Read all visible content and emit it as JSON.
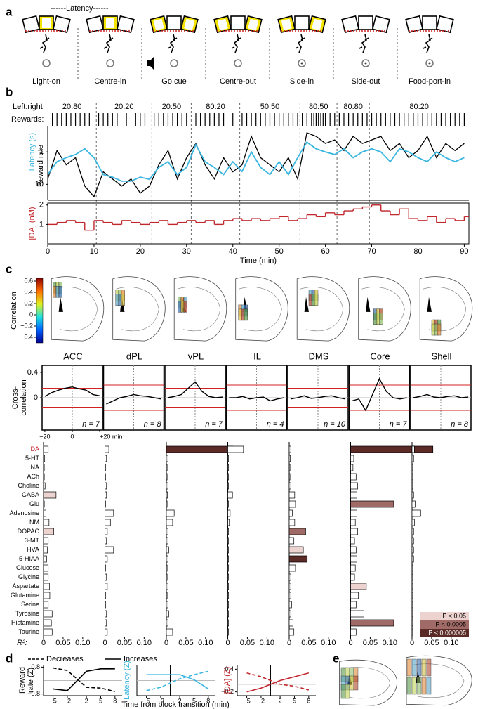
{
  "panel_labels": [
    "a",
    "b",
    "c",
    "d",
    "e"
  ],
  "panel_a": {
    "title": "------Latency------",
    "events": [
      "Light-on",
      "Centre-in",
      "Go cue",
      "Centre-out",
      "Side-in",
      "Side-out",
      "Food-port-in"
    ]
  },
  "panel_b": {
    "ratio_label": "Left:right",
    "block_ratios": [
      "20:80",
      "20:20",
      "20:50",
      "80:20",
      "50:50",
      "80:50",
      "80:80",
      "80:20"
    ],
    "rewards_label": "Rewards:",
    "reward_times": [
      1,
      2,
      3,
      4,
      5,
      6,
      7,
      8,
      9,
      11,
      12,
      13,
      14,
      15,
      17,
      19,
      20,
      21,
      23,
      24,
      25,
      26,
      27,
      28,
      29,
      30,
      32,
      33,
      34,
      35,
      36,
      37,
      38,
      40,
      42,
      43,
      44,
      45,
      46,
      47,
      48,
      49,
      50,
      51,
      52,
      53,
      54,
      55,
      56,
      57,
      57.5,
      58,
      58.5,
      59,
      59.5,
      60,
      61,
      62,
      63,
      64,
      65,
      66,
      67,
      68,
      69,
      70,
      71,
      72,
      73,
      74,
      75,
      76,
      77,
      78,
      79,
      80,
      81,
      82,
      83,
      84,
      85,
      86,
      87,
      88,
      89,
      90
    ],
    "transitions": [
      10.5,
      22.5,
      31,
      41.5,
      54.5,
      62.5,
      69.5
    ],
    "x": [
      0,
      2,
      4,
      6,
      8,
      10,
      12,
      14,
      16,
      18,
      20,
      22,
      24,
      26,
      28,
      30,
      32,
      34,
      36,
      38,
      40,
      42,
      44,
      46,
      48,
      50,
      52,
      54,
      56,
      58,
      60,
      62,
      64,
      66,
      68,
      70,
      72,
      74,
      76,
      78,
      80,
      82,
      84,
      86,
      88,
      90
    ],
    "xlim": [
      0,
      91
    ],
    "xticks": [
      0,
      10,
      20,
      30,
      40,
      50,
      60,
      70,
      80,
      90
    ],
    "xlabel": "Time (min)",
    "reward_rate": {
      "name": "Reward rate",
      "color": "#000000",
      "ylim": [
        0,
        1
      ],
      "values": [
        0.3,
        0.7,
        0.5,
        0.6,
        0.2,
        0.05,
        0.4,
        0.3,
        0.2,
        0.3,
        0.1,
        0.2,
        0.5,
        0.7,
        0.3,
        0.6,
        0.8,
        0.5,
        0.3,
        0.6,
        0.4,
        0.5,
        0.9,
        0.6,
        0.5,
        0.4,
        0.6,
        0.3,
        0.95,
        0.9,
        0.8,
        0.85,
        0.7,
        0.9,
        0.8,
        0.85,
        0.9,
        0.7,
        0.8,
        0.6,
        0.7,
        0.9,
        0.6,
        0.8,
        0.7,
        0.8
      ]
    },
    "latency": {
      "name": "Latency (s)",
      "color": "#3bb6e0",
      "log": true,
      "inverted": true,
      "ylim": [
        0.2,
        31
      ],
      "yticks": [
        1,
        10
      ],
      "values": [
        5,
        2,
        1.5,
        1.2,
        0.8,
        1.5,
        5,
        6,
        8,
        8,
        6,
        7,
        3,
        2,
        5,
        3,
        0.6,
        2,
        3,
        5,
        2,
        4,
        1,
        3,
        5,
        2,
        5,
        1.5,
        0.5,
        0.8,
        1,
        1.2,
        0.8,
        1.5,
        1,
        0.8,
        1,
        2,
        0.8,
        1,
        1.5,
        2,
        1,
        1.5,
        2,
        1.5
      ]
    },
    "da": {
      "name": "[DA] (nM)",
      "color": "#c1272d",
      "ylim": [
        0,
        2.1
      ],
      "yticks": [
        1,
        2
      ],
      "values": [
        1.0,
        1.1,
        1.2,
        1.1,
        0.7,
        1.2,
        1.1,
        1.0,
        1.2,
        1.1,
        1.0,
        1.1,
        1.2,
        1.0,
        1.1,
        1.2,
        1.1,
        1.2,
        1.0,
        1.2,
        1.3,
        1.2,
        1.3,
        1.2,
        1.3,
        1.4,
        1.2,
        1.3,
        1.5,
        1.4,
        1.6,
        1.5,
        1.7,
        1.8,
        1.9,
        2.0,
        1.7,
        1.5,
        1.8,
        1.3,
        1.2,
        1.4,
        1.1,
        1.3,
        1.2,
        1.4
      ]
    }
  },
  "panel_c": {
    "colorbar": {
      "label": "Correlation",
      "lim": [
        -0.5,
        0.65
      ],
      "ticks": [
        0.6,
        0.4,
        0.2,
        0,
        {
          "value": -0.2,
          "label": "−0.2"
        },
        {
          "value": -0.4,
          "label": "−0.4"
        }
      ]
    },
    "xcorr_ylabel": [
      "Cross-",
      "correlation"
    ],
    "xcorr_x": [
      -20,
      -15,
      -10,
      -5,
      0,
      5,
      10,
      15,
      20
    ],
    "xcorr_xlim": [
      -22,
      22
    ],
    "xcorr_ylim": [
      -0.51,
      0.51
    ],
    "xcorr_yticks": [
      0.4,
      0
    ],
    "xcorr_xticks": [
      {
        "value": -20,
        "label": "−20"
      },
      0,
      {
        "value": 20,
        "label": "+20 min"
      }
    ],
    "analytes": [
      "DA",
      "5-HT",
      "NA",
      "ACh",
      "Choline",
      "GABA",
      "Glu",
      "Adenosine",
      "NM",
      "DOPAC",
      "3-MT",
      "HVA",
      "5-HIAA",
      "Glucose",
      "Glycine",
      "Aspartate",
      "Glutamine",
      "Serine",
      "Tyrosine",
      "Histamine",
      "Taurine"
    ],
    "highlight_analyte": "DA",
    "highlight_color": "#c1272d",
    "r2_label": "R²:",
    "r2_xlim": [
      0,
      0.12
    ],
    "r2_xticks": [
      0,
      0.05,
      {
        "value": 0.1,
        "label": "0.10"
      }
    ],
    "significance": [
      {
        "label": "P < 0.05",
        "color": "#ecd3d0"
      },
      {
        "label": "P < 0.0005",
        "color": "#a06b66"
      },
      {
        "label": "P < 0.000005",
        "color": "#5b2b28"
      }
    ],
    "regions": [
      {
        "name": "ACC",
        "n_label": "n = 7",
        "threshold": 0.15,
        "xcorr": [
          0.02,
          0.08,
          0.12,
          0.15,
          0.17,
          0.14,
          0.12,
          0.05,
          0.03
        ],
        "r2": [
          0.012,
          0.003,
          0.002,
          0.002,
          0.004,
          0.032,
          0.002,
          0.006,
          0.014,
          0.026,
          0.012,
          0.01,
          0.008,
          0.012,
          0.012,
          0.015,
          0.016,
          0.012,
          0.022,
          0.02,
          0.022
        ],
        "sig": [
          0,
          0,
          0,
          0,
          0,
          1,
          0,
          0,
          0,
          1,
          0,
          0,
          0,
          0,
          0,
          0,
          0,
          0,
          0,
          0,
          0
        ]
      },
      {
        "name": "dPL",
        "n_label": "n = 8",
        "threshold": 0.2,
        "xcorr": [
          -0.1,
          -0.05,
          0,
          0.02,
          0.05,
          0.03,
          0.02,
          0,
          -0.02
        ],
        "r2": [
          0.01,
          0.004,
          0.002,
          0.002,
          0.004,
          0.004,
          0.002,
          0.022,
          0.014,
          0.006,
          0.004,
          0.022,
          0.006,
          0.002,
          0.004,
          0.006,
          0.002,
          0.002,
          0.004,
          0.004,
          0.006
        ],
        "sig": [
          0,
          0,
          0,
          0,
          0,
          0,
          0,
          0,
          0,
          0,
          0,
          0,
          0,
          0,
          0,
          0,
          0,
          0,
          0,
          0,
          0
        ]
      },
      {
        "name": "vPL",
        "n_label": "n = 7",
        "threshold": 0.15,
        "xcorr": [
          0,
          0.02,
          0.05,
          0.15,
          0.25,
          0.1,
          0.02,
          0,
          0.01
        ],
        "r2": [
          0.17,
          0.004,
          0.002,
          0.002,
          0.004,
          0.003,
          0.002,
          0.02,
          0.016,
          0.004,
          0.004,
          0.006,
          0.004,
          0.002,
          0.002,
          0.004,
          0.002,
          0.004,
          0.006,
          0.004,
          0.016
        ],
        "sig": [
          3,
          0,
          0,
          0,
          0,
          0,
          0,
          0,
          0,
          0,
          0,
          0,
          0,
          0,
          0,
          0,
          0,
          0,
          0,
          0,
          0
        ]
      },
      {
        "name": "IL",
        "n_label": "n = 4",
        "threshold": 0.2,
        "xcorr": [
          0,
          0,
          0.02,
          -0.02,
          0,
          0.01,
          -0.05,
          -0.02,
          0
        ],
        "r2": [
          0.04,
          0.002,
          0.002,
          0.002,
          0.002,
          0.012,
          0.002,
          0.006,
          0.004,
          0.002,
          0.002,
          0.002,
          0.002,
          0.002,
          0.002,
          0.002,
          0.002,
          0.002,
          0.002,
          0.002,
          0.002
        ],
        "sig": [
          0,
          0,
          0,
          0,
          0,
          0,
          0,
          0,
          0,
          0,
          0,
          0,
          0,
          0,
          0,
          0,
          0,
          0,
          0,
          0,
          0
        ]
      },
      {
        "name": "DMS",
        "n_label": "n = 10",
        "threshold": 0.15,
        "xcorr": [
          -0.02,
          0,
          0.03,
          -0.01,
          0,
          0.02,
          0.03,
          0,
          -0.02
        ],
        "r2": [
          0.004,
          0.003,
          0.002,
          0.002,
          0.004,
          0.014,
          0.016,
          0.008,
          0.014,
          0.042,
          0.012,
          0.036,
          0.046,
          0.016,
          0.004,
          0.004,
          0.004,
          0.006,
          0.004,
          0.01,
          0.012
        ],
        "sig": [
          0,
          0,
          0,
          0,
          0,
          0,
          0,
          0,
          0,
          2,
          0,
          1,
          3,
          0,
          0,
          0,
          0,
          0,
          0,
          0,
          0
        ]
      },
      {
        "name": "Core",
        "n_label": "n = 7",
        "threshold": 0.2,
        "xcorr": [
          -0.05,
          -0.02,
          -0.2,
          0.05,
          0.3,
          0.1,
          0,
          -0.02,
          0
        ],
        "r2": [
          0.21,
          0.008,
          0.006,
          0.014,
          0.018,
          0.016,
          0.11,
          0.016,
          0.012,
          0.018,
          0.01,
          0.014,
          0.016,
          0.012,
          0.01,
          0.04,
          0.02,
          0.014,
          0.034,
          0.11,
          0.014
        ],
        "sig": [
          3,
          0,
          0,
          0,
          0,
          0,
          2,
          0,
          0,
          0,
          0,
          0,
          0,
          0,
          0,
          1,
          0,
          0,
          0,
          2,
          0
        ]
      },
      {
        "name": "Shell",
        "n_label": "n = 8",
        "threshold": 0.2,
        "xcorr": [
          0,
          0.02,
          0.05,
          0.01,
          0,
          0.02,
          0.03,
          0,
          0.01
        ],
        "r2": [
          0.006,
          0.004,
          0.002,
          0.002,
          0.002,
          0.004,
          0.008,
          0.022,
          0.006,
          0.004,
          0.004,
          0.004,
          0.004,
          0.002,
          0.002,
          0.002,
          0.002,
          0.002,
          0.002,
          0.002,
          0.002
        ],
        "sig": [
          0,
          0,
          0,
          0,
          0,
          0,
          0,
          0,
          0,
          0,
          0,
          0,
          0,
          0,
          0,
          0,
          0,
          0,
          0,
          0,
          0
        ]
      }
    ]
  },
  "panel_d": {
    "x": [
      -5,
      -2,
      2,
      5,
      8
    ],
    "xlim": [
      -7,
      9.5
    ],
    "xticks": [
      {
        "value": -5,
        "label": "−5"
      },
      {
        "value": -2,
        "label": "−2"
      },
      2,
      5,
      8
    ],
    "xlabel": "Time from block transition (min)",
    "charts": [
      {
        "ylabel": [
          "Reward",
          "rate (Z)"
        ],
        "color": "#000000",
        "ylim": [
          -0.9,
          0.9
        ],
        "yticks": [
          0.8,
          {
            "value": -0.8,
            "label": "−0.8"
          }
        ],
        "series": [
          {
            "name": "Decreases",
            "dashed": true,
            "values": [
              0.75,
              0.6,
              -0.4,
              -0.45,
              -0.65
            ]
          },
          {
            "name": "Increases",
            "dashed": false,
            "values": [
              -0.5,
              -0.6,
              0.55,
              0.7,
              0.7
            ]
          }
        ]
      },
      {
        "ylabel": [
          "Latency (Z)"
        ],
        "color": "#3bb6e0",
        "ylim": [
          -0.9,
          0.9
        ],
        "yticks": [],
        "series": [
          {
            "dashed": true,
            "values": [
              -0.6,
              -0.4,
              0.1,
              0.35,
              0.55
            ]
          },
          {
            "dashed": false,
            "values": [
              0.35,
              0.35,
              0.35,
              0.05,
              -0.5
            ]
          }
        ]
      },
      {
        "ylabel": [
          "[DA] (Z)"
        ],
        "color": "#c1272d",
        "ylim": [
          -0.3,
          0.5
        ],
        "yticks": [
          0.4,
          {
            "value": -0.2,
            "label": "−0.2"
          }
        ],
        "series": [
          {
            "dashed": true,
            "values": [
              0.3,
              0.2,
              0,
              -0.05,
              -0.15
            ]
          },
          {
            "dashed": false,
            "values": [
              -0.2,
              -0.1,
              0.1,
              0.2,
              0.3
            ]
          }
        ]
      }
    ]
  }
}
